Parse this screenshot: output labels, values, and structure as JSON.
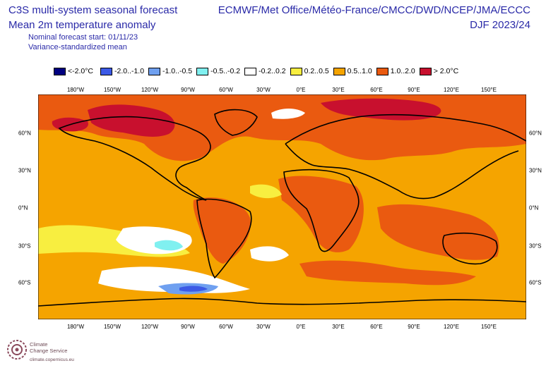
{
  "header": {
    "title_line1": "C3S multi-system seasonal forecast",
    "title_line2": "Mean 2m temperature anomaly",
    "subtitle_line1": "Nominal forecast start: 01/11/23",
    "subtitle_line2": "Variance-standardized mean",
    "systems": "ECMWF/Met Office/Météo-France/CMCC/DWD/NCEP/JMA/ECCC",
    "season": "DJF 2023/24"
  },
  "legend": [
    {
      "label": "<-2.0°C",
      "color": "#000080"
    },
    {
      "label": "-2.0..-1.0",
      "color": "#3c5ae6"
    },
    {
      "label": "-1.0..-0.5",
      "color": "#6fa0f0"
    },
    {
      "label": "-0.5..-0.2",
      "color": "#80f0f0"
    },
    {
      "label": "-0.2..0.2",
      "color": "#ffffff"
    },
    {
      "label": "0.2..0.5",
      "color": "#f8ee40"
    },
    {
      "label": "0.5..1.0",
      "color": "#f5a400"
    },
    {
      "label": "1.0..2.0",
      "color": "#ea5a10"
    },
    {
      "label": "> 2.0°C",
      "color": "#c8102e"
    }
  ],
  "lon_ticks": [
    "180°W",
    "150°W",
    "120°W",
    "90°W",
    "60°W",
    "30°W",
    "0°E",
    "30°E",
    "60°E",
    "90°E",
    "120°E",
    "150°E"
  ],
  "lat_ticks": [
    "60°N",
    "30°N",
    "0°N",
    "30°S",
    "60°S"
  ],
  "logo": {
    "name_line1": "Climate",
    "name_line2": "Change Service",
    "url": "climate.copernicus.eu"
  }
}
